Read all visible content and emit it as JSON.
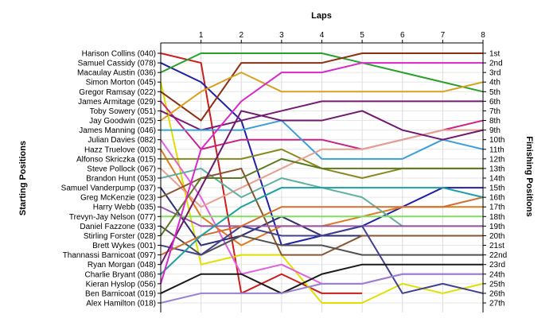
{
  "chart_data": {
    "type": "line",
    "title": "",
    "xlabel": "Laps",
    "ylabel_left": "Starting Positions",
    "ylabel_right": "Finishing Positions",
    "x_ticks": [
      1,
      2,
      3,
      4,
      5,
      6,
      7,
      8
    ],
    "x_range": [
      0,
      8
    ],
    "y_range": [
      1,
      27
    ],
    "y_inverted": true,
    "grid": true,
    "starting_labels": [
      "Harison Collins (040)",
      "Samuel Cassidy (078)",
      "Macaulay Austin (036)",
      "Simon Morton (045)",
      "Gregor Ramsay (022)",
      "James Armitage (029)",
      "Toby Sowery (051)",
      "Jay Goodwin (025)",
      "James Manning (046)",
      "Julian Davies (082)",
      "Hazz Truelove (003)",
      "Alfonso Skriczka (015)",
      "Steve Pollock (067)",
      "Brandon Hunt (053)",
      "Samuel Vanderpump (037)",
      "Greg McKenzie (023)",
      "Harry Webb (035)",
      "Trevyn-Jay Nelson (077)",
      "Daniel Fazzone (033)",
      "Stirling Forster (028)",
      "Brett Wykes (001)",
      "Thannassi Barnicoat (097)",
      "Ryan Morgan (048)",
      "Charlie Bryant (086)",
      "Kieran Hyslop (056)",
      "Ben Barnicoat (019)",
      "Alex Hamilton (018)"
    ],
    "finishing_labels": [
      "1st",
      "2nd",
      "3rd",
      "4th",
      "5th",
      "6th",
      "7th",
      "8th",
      "9th",
      "10th",
      "11th",
      "12th",
      "13th",
      "14th",
      "15th",
      "16th",
      "17th",
      "18th",
      "19th",
      "20th",
      "21st",
      "22nd",
      "23rd",
      "24th",
      "25th",
      "26th",
      "27th"
    ],
    "series": [
      {
        "color": "#cc1c1c",
        "values": [
          1,
          2,
          26,
          24,
          26,
          26
        ]
      },
      {
        "color": "#2020a8",
        "values": [
          2,
          4,
          8,
          21,
          20,
          19,
          17,
          15,
          15
        ]
      },
      {
        "color": "#2aa02a",
        "values": [
          3,
          1,
          1,
          1,
          1,
          2,
          3,
          4,
          5
        ]
      },
      {
        "color": "#e0e000",
        "values": [
          4,
          23,
          22,
          22,
          27,
          27,
          25,
          26,
          25
        ]
      },
      {
        "color": "#8a3010",
        "values": [
          5,
          8,
          2,
          2,
          2,
          1,
          1,
          1,
          1
        ]
      },
      {
        "color": "#cc2288",
        "values": [
          6,
          11,
          10,
          10,
          10,
          11,
          10,
          9,
          8
        ]
      },
      {
        "color": "#751a75",
        "values": [
          7,
          9,
          8,
          7,
          6,
          6,
          6,
          6,
          6
        ]
      },
      {
        "color": "#d8a020",
        "values": [
          8,
          5,
          3,
          5,
          5,
          5,
          5,
          5,
          4
        ]
      },
      {
        "color": "#3aa0d8",
        "values": [
          9,
          9,
          9,
          8,
          12,
          12,
          12,
          10,
          11
        ]
      },
      {
        "color": "#e060e0",
        "values": [
          10,
          16,
          24,
          23,
          25,
          25,
          24,
          24,
          24
        ]
      },
      {
        "color": "#e07a20",
        "values": [
          11,
          18,
          21,
          19,
          19,
          18,
          17,
          17,
          17
        ]
      },
      {
        "color": "#888820",
        "values": [
          12,
          12,
          12,
          11,
          13,
          14,
          13,
          13,
          13
        ]
      },
      {
        "color": "#e6a090",
        "values": [
          13,
          17,
          15,
          13,
          11,
          11,
          10,
          9,
          9
        ]
      },
      {
        "color": "#60b0a0",
        "values": [
          14,
          13,
          16,
          14,
          15,
          16,
          19,
          19,
          19
        ]
      },
      {
        "color": "#303070",
        "values": [
          15,
          21,
          20,
          18,
          20,
          20,
          20,
          20,
          20
        ]
      },
      {
        "color": "#8a5530",
        "values": [
          16,
          14,
          13,
          22,
          22,
          20,
          20,
          20,
          20
        ]
      },
      {
        "color": "#9955aa",
        "values": [
          17,
          19,
          19,
          19,
          19,
          19,
          19,
          19,
          19
        ]
      },
      {
        "color": "#7fe060",
        "values": [
          18,
          18,
          18,
          18,
          18,
          18,
          18,
          18,
          18
        ]
      },
      {
        "color": "#505050",
        "values": [
          19,
          22,
          20,
          21,
          21,
          22,
          22,
          22,
          22
        ]
      },
      {
        "color": "#5a7a20",
        "values": [
          20,
          14,
          14,
          12,
          13,
          13,
          13,
          13,
          13
        ]
      },
      {
        "color": "#404090",
        "values": [
          21,
          22,
          19,
          20,
          20,
          19,
          26,
          25,
          26
        ]
      },
      {
        "color": "#d07030",
        "values": [
          22,
          20,
          19,
          17,
          17,
          17,
          17,
          17,
          16
        ]
      },
      {
        "color": "#701870",
        "values": [
          23,
          15,
          7,
          8,
          8,
          7,
          9,
          10,
          9
        ]
      },
      {
        "color": "#1ca0a0",
        "values": [
          24,
          20,
          17,
          15,
          15,
          15,
          15,
          15,
          16
        ]
      },
      {
        "color": "#d828c8",
        "values": [
          25,
          11,
          6,
          3,
          3,
          2,
          2,
          2,
          2
        ]
      },
      {
        "color": "#1a1a1a",
        "values": [
          26,
          24,
          24,
          26,
          24,
          23,
          23,
          23,
          23
        ]
      },
      {
        "color": "#9a80d0",
        "values": [
          27,
          26,
          26,
          26,
          25,
          25,
          24,
          24,
          24
        ]
      }
    ]
  }
}
